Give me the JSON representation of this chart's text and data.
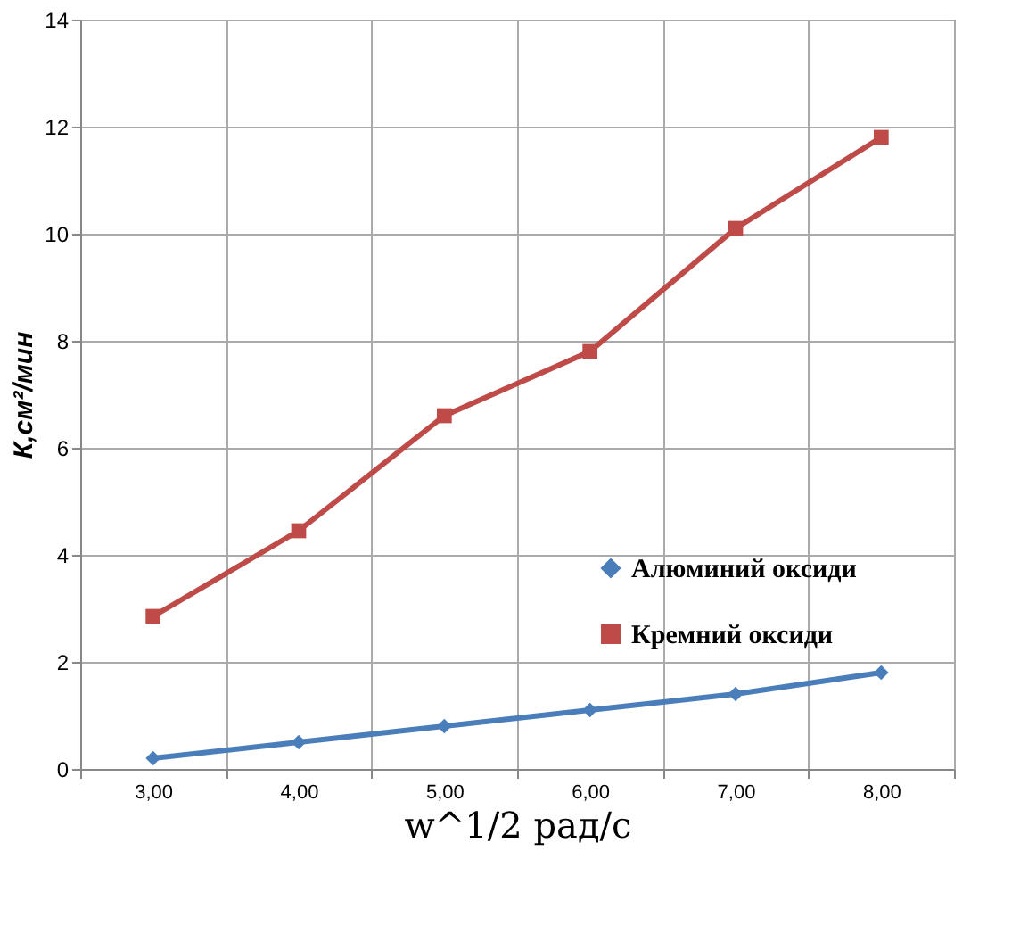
{
  "chart_data": {
    "type": "line",
    "xlabel": "w^1/2 рад/с",
    "ylabel": "К,см²/мин",
    "categories": [
      "3,00",
      "4,00",
      "5,00",
      "6,00",
      "7,00",
      "8,00"
    ],
    "series": [
      {
        "name": "Алюминий оксиди",
        "color": "#4a7ebb",
        "marker": "diamond",
        "values": [
          0.2,
          0.5,
          0.8,
          1.1,
          1.4,
          1.8
        ]
      },
      {
        "name": "Кремний оксиди",
        "color": "#be4b48",
        "marker": "square",
        "values": [
          2.85,
          4.45,
          6.6,
          7.8,
          10.1,
          11.8
        ]
      }
    ],
    "ylim": [
      0,
      14
    ],
    "yticks": [
      0,
      2,
      4,
      6,
      8,
      10,
      12,
      14
    ],
    "grid": true,
    "legend": "right",
    "line_style": "solid"
  }
}
